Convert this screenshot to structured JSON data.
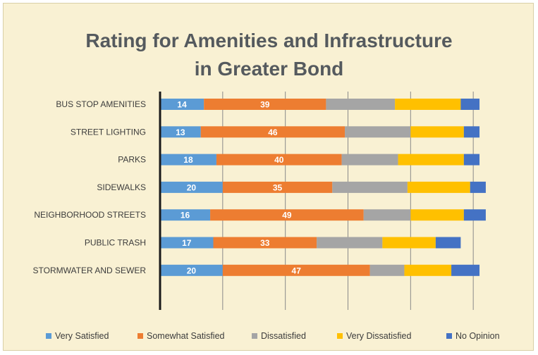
{
  "chart_data": {
    "type": "bar",
    "orientation": "horizontal",
    "stacked": true,
    "title_lines": [
      "Rating for Amenities and Infrastructure",
      "in Greater Bond"
    ],
    "categories": [
      "BUS STOP AMENITIES",
      "STREET LIGHTING",
      "PARKS",
      "SIDEWALKS",
      "NEIGHBORHOOD STREETS",
      "PUBLIC TRASH",
      "STORMWATER AND SEWER"
    ],
    "series": [
      {
        "name": "Very Satisfied",
        "color": "#5b9bd5",
        "values": [
          14,
          13,
          18,
          20,
          16,
          17,
          20
        ],
        "show_labels": true
      },
      {
        "name": "Somewhat Satisfied",
        "color": "#ed7d31",
        "values": [
          39,
          46,
          40,
          35,
          49,
          33,
          47
        ],
        "show_labels": true
      },
      {
        "name": "Dissatisfied",
        "color": "#a5a5a5",
        "values": [
          22,
          21,
          18,
          24,
          15,
          21,
          11
        ],
        "show_labels": false
      },
      {
        "name": "Very Dissatisfied",
        "color": "#ffc000",
        "values": [
          21,
          17,
          21,
          20,
          17,
          17,
          15
        ],
        "show_labels": false
      },
      {
        "name": "No Opinion",
        "color": "#4472c4",
        "values": [
          6,
          5,
          5,
          5,
          7,
          8,
          9
        ],
        "show_labels": false
      }
    ],
    "xlim": [
      0,
      120
    ],
    "grid": true,
    "legend_position": "bottom"
  }
}
